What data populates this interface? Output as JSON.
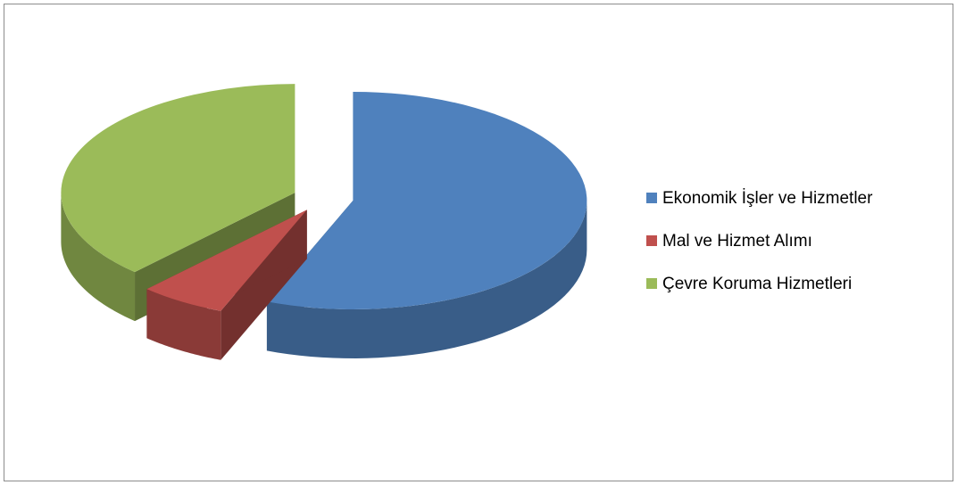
{
  "chart_data": {
    "type": "pie",
    "categories": [
      "Ekonomik İşler ve Hizmetler",
      "Mal ve Hizmet Alımı",
      "Çevre Koruma Hizmetleri"
    ],
    "values": [
      56,
      6,
      38
    ],
    "colors": [
      "#4f81bd",
      "#c0504d",
      "#9bbb59"
    ],
    "legend": "right"
  }
}
